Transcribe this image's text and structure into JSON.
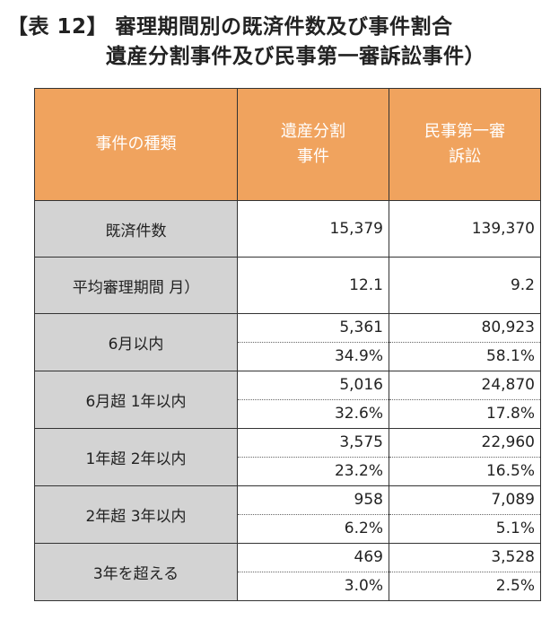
{
  "title": {
    "line1": "【表 12】 審理期間別の既済件数及び事件割合",
    "line2": "遺産分割事件及び民事第一審訴訟事件）"
  },
  "table": {
    "headers": {
      "type": "事件の種類",
      "col1": "遺産分割\n事件",
      "col2": "民事第一審\n訴訟"
    },
    "summary_rows": [
      {
        "label": "既済件数",
        "col1": "15,379",
        "col2": "139,370"
      },
      {
        "label": "平均審理期間 月）",
        "col1": "12.1",
        "col2": "9.2"
      }
    ],
    "period_rows": [
      {
        "label": "6月以内",
        "col1_count": "5,361",
        "col1_pct": "34.9%",
        "col2_count": "80,923",
        "col2_pct": "58.1%"
      },
      {
        "label": "6月超 1年以内",
        "col1_count": "5,016",
        "col1_pct": "32.6%",
        "col2_count": "24,870",
        "col2_pct": "17.8%"
      },
      {
        "label": "1年超 2年以内",
        "col1_count": "3,575",
        "col1_pct": "23.2%",
        "col2_count": "22,960",
        "col2_pct": "16.5%"
      },
      {
        "label": "2年超 3年以内",
        "col1_count": "958",
        "col1_pct": "6.2%",
        "col2_count": "7,089",
        "col2_pct": "5.1%"
      },
      {
        "label": "3年を超える",
        "col1_count": "469",
        "col1_pct": "3.0%",
        "col2_count": "3,528",
        "col2_pct": "2.5%"
      }
    ]
  },
  "colors": {
    "header_bg": "#f0a35e",
    "label_bg": "#d3d3d3"
  }
}
